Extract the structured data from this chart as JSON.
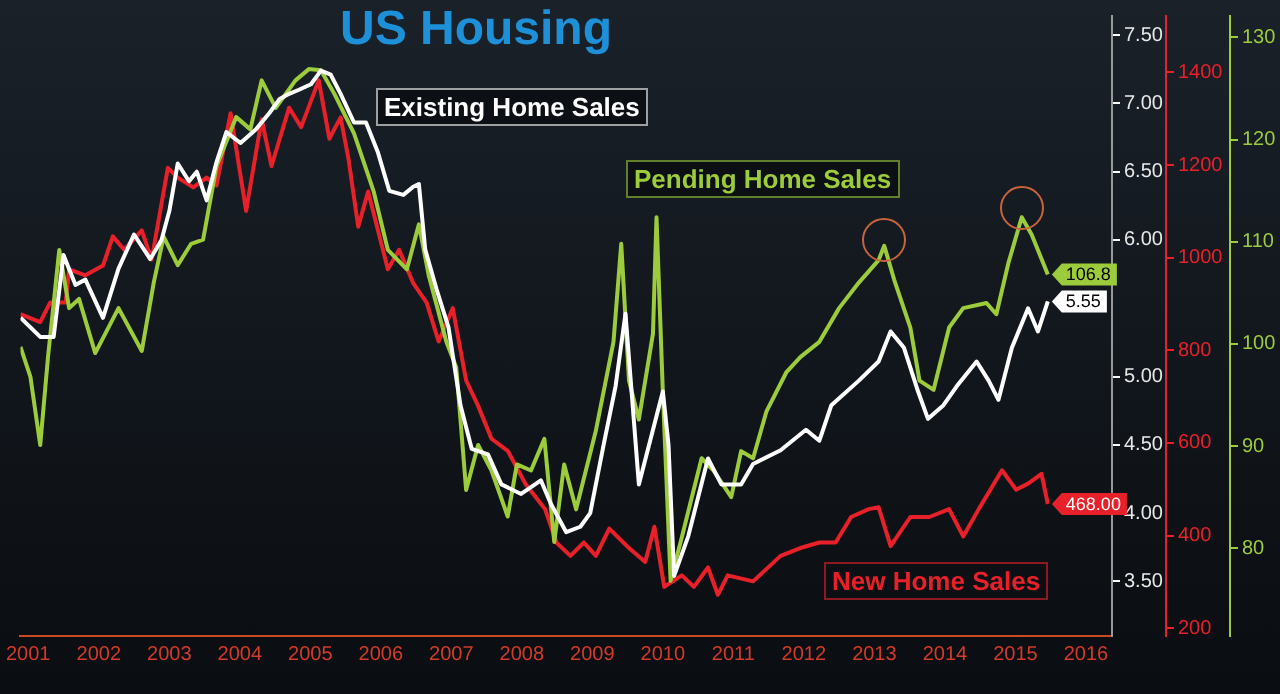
{
  "chart_data": {
    "type": "line",
    "title": "US Housing",
    "xlim": [
      2001.39,
      2016.87
    ],
    "xticks": [
      {
        "value": 2001.5,
        "label": "2001"
      },
      {
        "value": 2002.5,
        "label": "2002"
      },
      {
        "value": 2003.5,
        "label": "2003"
      },
      {
        "value": 2004.5,
        "label": "2004"
      },
      {
        "value": 2005.5,
        "label": "2005"
      },
      {
        "value": 2006.5,
        "label": "2006"
      },
      {
        "value": 2007.5,
        "label": "2007"
      },
      {
        "value": 2008.5,
        "label": "2008"
      },
      {
        "value": 2009.5,
        "label": "2009"
      },
      {
        "value": 2010.5,
        "label": "2010"
      },
      {
        "value": 2011.5,
        "label": "2011"
      },
      {
        "value": 2012.5,
        "label": "2012"
      },
      {
        "value": 2013.5,
        "label": "2013"
      },
      {
        "value": 2014.5,
        "label": "2014"
      },
      {
        "value": 2015.5,
        "label": "2015"
      },
      {
        "value": 2016.5,
        "label": "2016"
      }
    ],
    "ylim": [
      3.1,
      7.64
    ],
    "yticks": [
      {
        "value": 3.5,
        "label": "3.50"
      },
      {
        "value": 4,
        "label": "4.00"
      },
      {
        "value": 4.5,
        "label": "4.50"
      },
      {
        "value": 5,
        "label": "5.00"
      },
      {
        "value": 6,
        "label": "6.00"
      },
      {
        "value": 6.5,
        "label": "6.50"
      },
      {
        "value": 7,
        "label": "7.00"
      },
      {
        "value": 7.5,
        "label": "7.50"
      }
    ],
    "y2lim": [
      183,
      1522
    ],
    "y2ticks": [
      200,
      400,
      600,
      800,
      1000,
      1200,
      1400
    ],
    "y3lim": [
      71.4,
      132.1
    ],
    "y3ticks": [
      80,
      90,
      100,
      110,
      120,
      130
    ],
    "series": [
      {
        "name": "Existing Home Sales",
        "color": "#ffffff",
        "axis": "y",
        "x": [
          2001.39,
          2001.67,
          2001.86,
          2002.0,
          2002.17,
          2002.31,
          2002.56,
          2002.78,
          2003.0,
          2003.23,
          2003.39,
          2003.5,
          2003.62,
          2003.78,
          2003.89,
          2004.03,
          2004.17,
          2004.31,
          2004.51,
          2004.73,
          2004.92,
          2005.06,
          2005.2,
          2005.34,
          2005.51,
          2005.65,
          2005.79,
          2005.93,
          2006.12,
          2006.29,
          2006.46,
          2006.62,
          2006.82,
          2006.96,
          2007.04,
          2007.13,
          2007.29,
          2007.46,
          2007.63,
          2007.79,
          2008.02,
          2008.21,
          2008.49,
          2008.77,
          2008.91,
          2009.13,
          2009.33,
          2009.47,
          2009.66,
          2009.83,
          2009.97,
          2010.16,
          2010.5,
          2010.58,
          2010.66,
          2010.86,
          2011.14,
          2011.33,
          2011.61,
          2011.78,
          2012.17,
          2012.53,
          2012.72,
          2012.89,
          2013.28,
          2013.56,
          2013.73,
          2013.92,
          2014.12,
          2014.26,
          2014.48,
          2014.67,
          2014.95,
          2015.12,
          2015.26,
          2015.45,
          2015.68,
          2015.82,
          2015.96
        ],
        "values": [
          5.43,
          5.29,
          5.29,
          5.89,
          5.67,
          5.71,
          5.43,
          5.79,
          6.04,
          5.86,
          6.0,
          6.21,
          6.56,
          6.43,
          6.5,
          6.29,
          6.57,
          6.79,
          6.71,
          6.81,
          6.93,
          7.03,
          7.07,
          7.1,
          7.14,
          7.24,
          7.21,
          7.07,
          6.86,
          6.86,
          6.64,
          6.36,
          6.33,
          6.39,
          6.41,
          5.93,
          5.64,
          5.36,
          4.79,
          4.47,
          4.43,
          4.21,
          4.14,
          4.24,
          4.07,
          3.86,
          3.9,
          4.0,
          4.5,
          4.93,
          5.46,
          4.21,
          4.89,
          4.5,
          3.54,
          3.83,
          4.4,
          4.21,
          4.21,
          4.36,
          4.46,
          4.61,
          4.53,
          4.79,
          4.97,
          5.11,
          5.33,
          5.21,
          4.89,
          4.69,
          4.79,
          4.93,
          5.11,
          4.97,
          4.83,
          5.21,
          5.5,
          5.33,
          5.55
        ],
        "value_labels": [
          null,
          null,
          null,
          null,
          null,
          null,
          null,
          null,
          null,
          null,
          null,
          null,
          null,
          null,
          null,
          null,
          null,
          null,
          null,
          null,
          null,
          null,
          null,
          null,
          null,
          null,
          null,
          null,
          null,
          null,
          null,
          null,
          null,
          null,
          null,
          null,
          null,
          null,
          null,
          null,
          null,
          null,
          null,
          null,
          null,
          null,
          null,
          null,
          null,
          null,
          null,
          null,
          null,
          null,
          null,
          null,
          null,
          null,
          null,
          null,
          null,
          null,
          null,
          null,
          null,
          null,
          null,
          null,
          null,
          null,
          null,
          null,
          null,
          null,
          null,
          null,
          null,
          null,
          "5.55"
        ]
      },
      {
        "name": "Pending Home Sales",
        "color": "#9ccc3c",
        "axis": "y3",
        "x": [
          2001.39,
          2001.53,
          2001.67,
          2001.78,
          2001.94,
          2002.08,
          2002.22,
          2002.45,
          2002.78,
          2003.11,
          2003.28,
          2003.42,
          2003.62,
          2003.81,
          2003.98,
          2004.17,
          2004.45,
          2004.65,
          2004.81,
          2005.01,
          2005.29,
          2005.48,
          2005.65,
          2005.84,
          2006.12,
          2006.4,
          2006.6,
          2006.87,
          2007.04,
          2007.18,
          2007.43,
          2007.57,
          2007.71,
          2007.88,
          2008.07,
          2008.3,
          2008.43,
          2008.63,
          2008.82,
          2008.96,
          2009.1,
          2009.27,
          2009.55,
          2009.8,
          2009.91,
          2010.02,
          2010.16,
          2010.36,
          2010.41,
          2010.5,
          2010.61,
          2010.77,
          2011.05,
          2011.22,
          2011.47,
          2011.61,
          2011.78,
          2011.97,
          2012.25,
          2012.45,
          2012.72,
          2013.0,
          2013.28,
          2013.56,
          2013.64,
          2013.78,
          2014.01,
          2014.14,
          2014.34,
          2014.56,
          2014.76,
          2015.09,
          2015.23,
          2015.4,
          2015.59,
          2015.73,
          2015.96
        ],
        "values": [
          99.7,
          96.8,
          90.1,
          98.7,
          109.2,
          103.5,
          104.4,
          99.1,
          103.5,
          99.3,
          106.0,
          110.5,
          107.7,
          109.8,
          110.2,
          117.4,
          122.2,
          121.0,
          125.8,
          123.1,
          125.8,
          126.9,
          126.8,
          124.5,
          120.6,
          114.9,
          109.2,
          107.3,
          111.7,
          106.7,
          100.2,
          97.7,
          85.7,
          90.1,
          87.6,
          83.1,
          88.2,
          87.6,
          90.7,
          80.6,
          88.2,
          83.8,
          91.5,
          100.2,
          109.8,
          96.4,
          92.6,
          101.0,
          112.4,
          95.3,
          76.8,
          81.1,
          88.8,
          87.6,
          85.0,
          89.5,
          88.8,
          93.4,
          97.2,
          98.7,
          100.2,
          103.5,
          106.0,
          108.2,
          109.6,
          106.3,
          101.6,
          96.4,
          95.5,
          101.6,
          103.5,
          104.0,
          102.9,
          107.9,
          112.4,
          110.7,
          106.8
        ],
        "value_labels": [
          null,
          null,
          null,
          null,
          null,
          null,
          null,
          null,
          null,
          null,
          null,
          null,
          null,
          null,
          null,
          null,
          null,
          null,
          null,
          null,
          null,
          null,
          null,
          null,
          null,
          null,
          null,
          null,
          null,
          null,
          null,
          null,
          null,
          null,
          null,
          null,
          null,
          null,
          null,
          null,
          null,
          null,
          null,
          null,
          null,
          null,
          null,
          null,
          null,
          null,
          null,
          null,
          null,
          null,
          null,
          null,
          null,
          null,
          null,
          null,
          null,
          null,
          null,
          null,
          null,
          null,
          null,
          null,
          null,
          null,
          null,
          null,
          null,
          null,
          null,
          null,
          "106.8"
        ]
      },
      {
        "name": "New Home Sales",
        "color": "#e8202a",
        "axis": "y2",
        "x": [
          2001.39,
          2001.67,
          2001.81,
          2002.03,
          2002.08,
          2002.31,
          2002.56,
          2002.7,
          2002.86,
          2003.11,
          2003.25,
          2003.48,
          2003.62,
          2003.84,
          2004.03,
          2004.17,
          2004.37,
          2004.59,
          2004.81,
          2004.95,
          2005.2,
          2005.37,
          2005.62,
          2005.77,
          2005.93,
          2006.04,
          2006.18,
          2006.32,
          2006.6,
          2006.76,
          2006.96,
          2007.15,
          2007.32,
          2007.52,
          2007.71,
          2007.88,
          2008.07,
          2008.3,
          2008.55,
          2008.83,
          2008.99,
          2009.19,
          2009.38,
          2009.55,
          2009.74,
          2010.02,
          2010.25,
          2010.38,
          2010.52,
          2010.77,
          2010.94,
          2011.14,
          2011.28,
          2011.42,
          2011.78,
          2012.17,
          2012.45,
          2012.72,
          2012.95,
          2013.17,
          2013.42,
          2013.56,
          2013.73,
          2014.01,
          2014.28,
          2014.56,
          2014.76,
          2014.98,
          2015.31,
          2015.51,
          2015.68,
          2015.87,
          2015.96
        ],
        "values": [
          878,
          861,
          903,
          903,
          975,
          962,
          983,
          1046,
          1017,
          1059,
          996,
          1194,
          1173,
          1152,
          1173,
          1156,
          1312,
          1101,
          1299,
          1198,
          1324,
          1282,
          1383,
          1257,
          1303,
          1215,
          1067,
          1143,
          975,
          1017,
          945,
          903,
          819,
          891,
          735,
          680,
          609,
          583,
          512,
          457,
          385,
          356,
          385,
          356,
          415,
          373,
          343,
          419,
          289,
          314,
          289,
          331,
          272,
          314,
          301,
          356,
          373,
          385,
          385,
          440,
          457,
          461,
          377,
          440,
          440,
          457,
          398,
          457,
          541,
          499,
          512,
          533,
          468
        ],
        "value_labels": [
          null,
          null,
          null,
          null,
          null,
          null,
          null,
          null,
          null,
          null,
          null,
          null,
          null,
          null,
          null,
          null,
          null,
          null,
          null,
          null,
          null,
          null,
          null,
          null,
          null,
          null,
          null,
          null,
          null,
          null,
          null,
          null,
          null,
          null,
          null,
          null,
          null,
          null,
          null,
          null,
          null,
          null,
          null,
          null,
          null,
          null,
          null,
          null,
          null,
          null,
          null,
          null,
          null,
          null,
          null,
          null,
          null,
          null,
          null,
          null,
          null,
          null,
          null,
          null,
          null,
          null,
          null,
          null,
          null,
          null,
          null,
          null,
          "468.00"
        ]
      }
    ]
  }
}
